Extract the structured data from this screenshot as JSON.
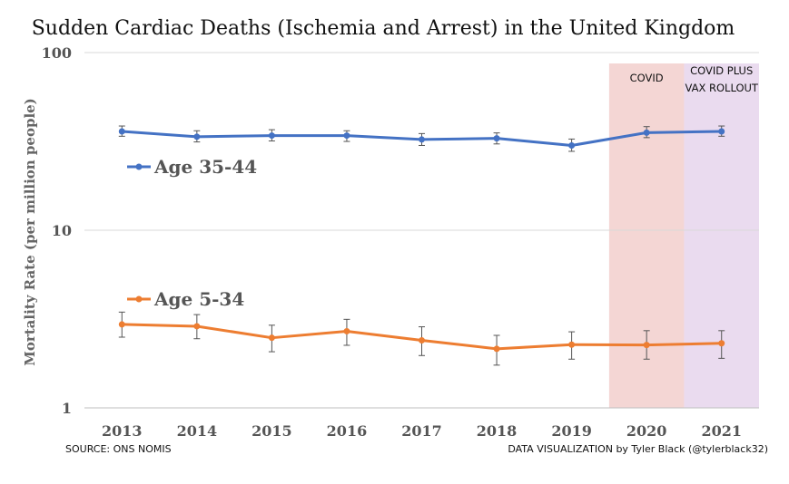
{
  "chart_data": {
    "type": "line",
    "title": "Sudden Cardiac Deaths (Ischemia and Arrest) in the United Kingdom",
    "ylabel": "Mortality Rate (per million people)",
    "xlabel": "",
    "yscale": "log",
    "ylim": [
      1,
      100
    ],
    "yticks": [
      1,
      10,
      100
    ],
    "categories": [
      "2013",
      "2014",
      "2015",
      "2016",
      "2017",
      "2018",
      "2019",
      "2020",
      "2021"
    ],
    "series": [
      {
        "name": "Age 35-44",
        "color": "#4472c4",
        "values": [
          36.0,
          33.6,
          34.1,
          34.1,
          32.4,
          32.9,
          30.0,
          35.4,
          36.0
        ],
        "err_low": [
          33.8,
          31.4,
          31.8,
          31.6,
          30.0,
          30.6,
          27.8,
          33.2,
          33.8
        ],
        "err_high": [
          38.6,
          36.3,
          36.8,
          36.3,
          35.0,
          35.3,
          32.6,
          38.3,
          38.6
        ]
      },
      {
        "name": "Age 5-34",
        "color": "#ed7d31",
        "values": [
          2.95,
          2.88,
          2.48,
          2.7,
          2.4,
          2.15,
          2.27,
          2.26,
          2.31
        ],
        "err_low": [
          2.5,
          2.45,
          2.07,
          2.25,
          1.97,
          1.74,
          1.88,
          1.88,
          1.9
        ],
        "err_high": [
          3.46,
          3.35,
          2.92,
          3.15,
          2.86,
          2.56,
          2.68,
          2.72,
          2.72
        ]
      }
    ],
    "bands": [
      {
        "label": "COVID",
        "category": "2020",
        "color": "#f4d6d4"
      },
      {
        "label": "COVID PLUS VAX ROLLOUT",
        "line1": "COVID PLUS",
        "line2": "VAX ROLLOUT",
        "category": "2021",
        "color": "#eadbef"
      }
    ],
    "grid": true,
    "legend": "inline labels"
  },
  "footer": {
    "source": "SOURCE: ONS NOMIS",
    "credit": "DATA VISUALIZATION by Tyler Black (@tylerblack32)"
  }
}
